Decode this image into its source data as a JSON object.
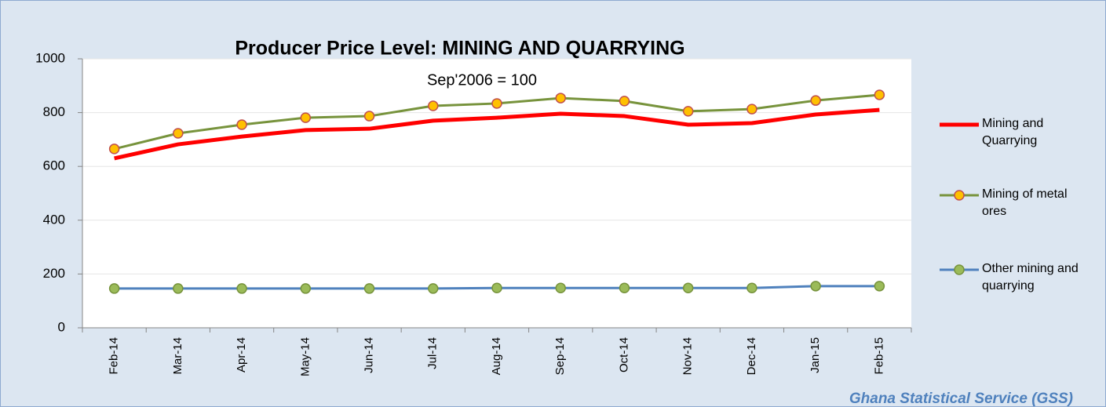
{
  "chart_data": {
    "type": "line",
    "title": "Producer Price Level:  MINING AND QUARRYING",
    "subtitle": "Sep'2006 = 100",
    "source": "Ghana Statistical Service (GSS)",
    "categories": [
      "Feb-14",
      "Mar-14",
      "Apr-14",
      "May-14",
      "Jun-14",
      "Jul-14",
      "Aug-14",
      "Sep-14",
      "Oct-14",
      "Nov-14",
      "Dec-14",
      "Jan-15",
      "Feb-15"
    ],
    "series": [
      {
        "name": "Mining and Quarrying",
        "color": "#ff0000",
        "values": [
          630,
          682,
          711,
          735,
          740,
          770,
          781,
          796,
          787,
          755,
          761,
          793,
          810
        ]
      },
      {
        "name": "Mining of metal ores",
        "color": "#77933c",
        "marker_fill": "#ffc000",
        "marker_stroke": "#c0504d",
        "values": [
          665,
          723,
          755,
          781,
          787,
          825,
          834,
          854,
          843,
          805,
          813,
          845,
          866
        ]
      },
      {
        "name": "Other mining and quarrying",
        "color": "#4f81bd",
        "marker_fill": "#9bbb59",
        "marker_stroke": "#77933c",
        "values": [
          146,
          146,
          146,
          146,
          146,
          146,
          148,
          148,
          148,
          148,
          148,
          155,
          155
        ]
      }
    ],
    "ylim": [
      0,
      1000
    ],
    "yticks": [
      0,
      200,
      400,
      600,
      800,
      1000
    ],
    "grid": true,
    "legend": "right"
  }
}
